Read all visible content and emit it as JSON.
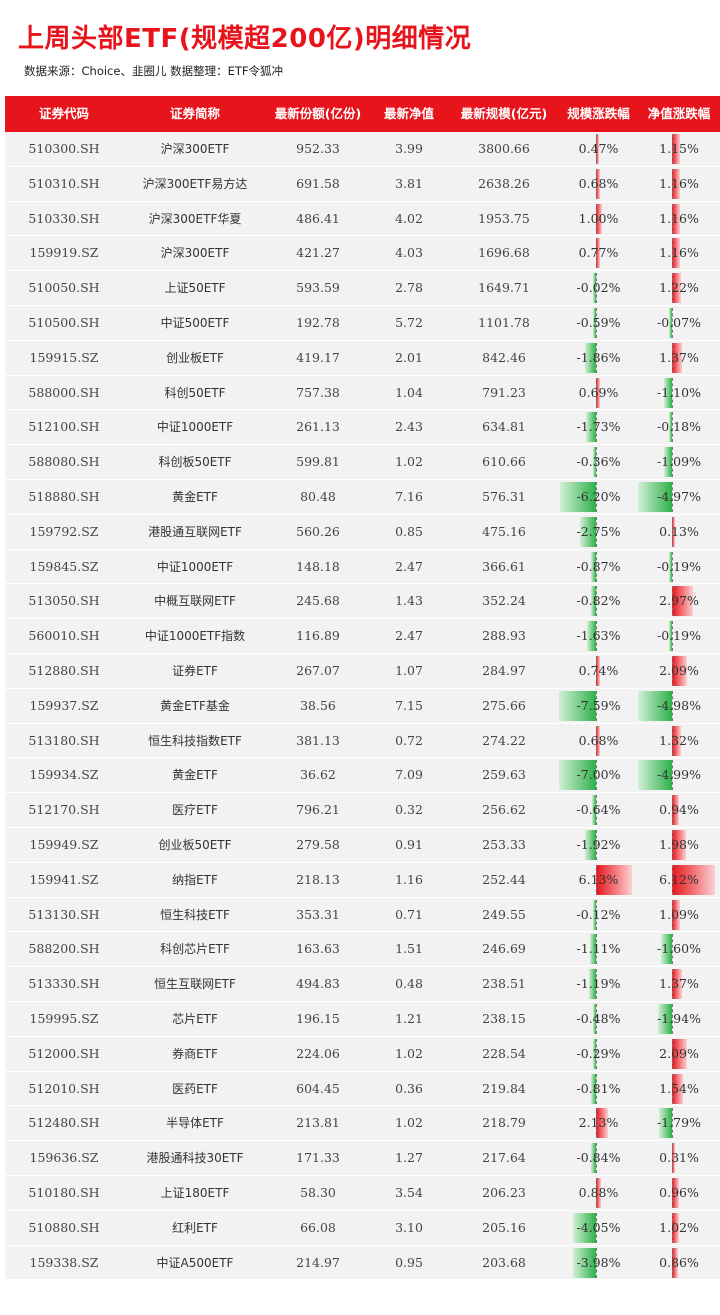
{
  "title": "上周头部ETF(规模超200亿)明细情况",
  "source": "数据来源：Choice、韭圈儿   数据整理：ETF令狐冲",
  "colors": {
    "accent": "#e8141c",
    "positive": "#e8141c",
    "negative": "#2fb04a",
    "row_bg": "#f2f2f2"
  },
  "columns": [
    "证券代码",
    "证券简称",
    "最新份额(亿份)",
    "最新净值",
    "最新规模(亿元)",
    "规模涨跌幅",
    "净值涨跌幅"
  ],
  "rows": [
    {
      "code": "510300.SH",
      "name": "沪深300ETF",
      "shares": "952.33",
      "nav": "3.99",
      "aum": "3800.66",
      "aum_chg": "0.47%",
      "nav_chg": "1.15%"
    },
    {
      "code": "510310.SH",
      "name": "沪深300ETF易方达",
      "shares": "691.58",
      "nav": "3.81",
      "aum": "2638.26",
      "aum_chg": "0.68%",
      "nav_chg": "1.16%"
    },
    {
      "code": "510330.SH",
      "name": "沪深300ETF华夏",
      "shares": "486.41",
      "nav": "4.02",
      "aum": "1953.75",
      "aum_chg": "1.00%",
      "nav_chg": "1.16%"
    },
    {
      "code": "159919.SZ",
      "name": "沪深300ETF",
      "shares": "421.27",
      "nav": "4.03",
      "aum": "1696.68",
      "aum_chg": "0.77%",
      "nav_chg": "1.16%"
    },
    {
      "code": "510050.SH",
      "name": "上证50ETF",
      "shares": "593.59",
      "nav": "2.78",
      "aum": "1649.71",
      "aum_chg": "-0.02%",
      "nav_chg": "1.22%"
    },
    {
      "code": "510500.SH",
      "name": "中证500ETF",
      "shares": "192.78",
      "nav": "5.72",
      "aum": "1101.78",
      "aum_chg": "-0.59%",
      "nav_chg": "-0.07%"
    },
    {
      "code": "159915.SZ",
      "name": "创业板ETF",
      "shares": "419.17",
      "nav": "2.01",
      "aum": "842.46",
      "aum_chg": "-1.86%",
      "nav_chg": "1.37%"
    },
    {
      "code": "588000.SH",
      "name": "科创50ETF",
      "shares": "757.38",
      "nav": "1.04",
      "aum": "791.23",
      "aum_chg": "0.69%",
      "nav_chg": "-1.10%"
    },
    {
      "code": "512100.SH",
      "name": "中证1000ETF",
      "shares": "261.13",
      "nav": "2.43",
      "aum": "634.81",
      "aum_chg": "-1.73%",
      "nav_chg": "-0.18%"
    },
    {
      "code": "588080.SH",
      "name": "科创板50ETF",
      "shares": "599.81",
      "nav": "1.02",
      "aum": "610.66",
      "aum_chg": "-0.36%",
      "nav_chg": "-1.09%"
    },
    {
      "code": "518880.SH",
      "name": "黄金ETF",
      "shares": "80.48",
      "nav": "7.16",
      "aum": "576.31",
      "aum_chg": "-6.20%",
      "nav_chg": "-4.97%"
    },
    {
      "code": "159792.SZ",
      "name": "港股通互联网ETF",
      "shares": "560.26",
      "nav": "0.85",
      "aum": "475.16",
      "aum_chg": "-2.75%",
      "nav_chg": "0.13%"
    },
    {
      "code": "159845.SZ",
      "name": "中证1000ETF",
      "shares": "148.18",
      "nav": "2.47",
      "aum": "366.61",
      "aum_chg": "-0.87%",
      "nav_chg": "-0.19%"
    },
    {
      "code": "513050.SH",
      "name": "中概互联网ETF",
      "shares": "245.68",
      "nav": "1.43",
      "aum": "352.24",
      "aum_chg": "-0.82%",
      "nav_chg": "2.97%"
    },
    {
      "code": "560010.SH",
      "name": "中证1000ETF指数",
      "shares": "116.89",
      "nav": "2.47",
      "aum": "288.93",
      "aum_chg": "-1.63%",
      "nav_chg": "-0.19%"
    },
    {
      "code": "512880.SH",
      "name": "证券ETF",
      "shares": "267.07",
      "nav": "1.07",
      "aum": "284.97",
      "aum_chg": "0.74%",
      "nav_chg": "2.09%"
    },
    {
      "code": "159937.SZ",
      "name": "黄金ETF基金",
      "shares": "38.56",
      "nav": "7.15",
      "aum": "275.66",
      "aum_chg": "-7.59%",
      "nav_chg": "-4.98%"
    },
    {
      "code": "513180.SH",
      "name": "恒生科技指数ETF",
      "shares": "381.13",
      "nav": "0.72",
      "aum": "274.22",
      "aum_chg": "0.68%",
      "nav_chg": "1.32%"
    },
    {
      "code": "159934.SZ",
      "name": "黄金ETF",
      "shares": "36.62",
      "nav": "7.09",
      "aum": "259.63",
      "aum_chg": "-7.00%",
      "nav_chg": "-4.99%"
    },
    {
      "code": "512170.SH",
      "name": "医疗ETF",
      "shares": "796.21",
      "nav": "0.32",
      "aum": "256.62",
      "aum_chg": "-0.64%",
      "nav_chg": "0.94%"
    },
    {
      "code": "159949.SZ",
      "name": "创业板50ETF",
      "shares": "279.58",
      "nav": "0.91",
      "aum": "253.33",
      "aum_chg": "-1.92%",
      "nav_chg": "1.98%"
    },
    {
      "code": "159941.SZ",
      "name": "纳指ETF",
      "shares": "218.13",
      "nav": "1.16",
      "aum": "252.44",
      "aum_chg": "6.13%",
      "nav_chg": "6.12%"
    },
    {
      "code": "513130.SH",
      "name": "恒生科技ETF",
      "shares": "353.31",
      "nav": "0.71",
      "aum": "249.55",
      "aum_chg": "-0.12%",
      "nav_chg": "1.09%"
    },
    {
      "code": "588200.SH",
      "name": "科创芯片ETF",
      "shares": "163.63",
      "nav": "1.51",
      "aum": "246.69",
      "aum_chg": "-1.11%",
      "nav_chg": "-1.60%"
    },
    {
      "code": "513330.SH",
      "name": "恒生互联网ETF",
      "shares": "494.83",
      "nav": "0.48",
      "aum": "238.51",
      "aum_chg": "-1.19%",
      "nav_chg": "1.37%"
    },
    {
      "code": "159995.SZ",
      "name": "芯片ETF",
      "shares": "196.15",
      "nav": "1.21",
      "aum": "238.15",
      "aum_chg": "-0.48%",
      "nav_chg": "-1.94%"
    },
    {
      "code": "512000.SH",
      "name": "券商ETF",
      "shares": "224.06",
      "nav": "1.02",
      "aum": "228.54",
      "aum_chg": "-0.29%",
      "nav_chg": "2.09%"
    },
    {
      "code": "512010.SH",
      "name": "医药ETF",
      "shares": "604.45",
      "nav": "0.36",
      "aum": "219.84",
      "aum_chg": "-0.81%",
      "nav_chg": "1.54%"
    },
    {
      "code": "512480.SH",
      "name": "半导体ETF",
      "shares": "213.81",
      "nav": "1.02",
      "aum": "218.79",
      "aum_chg": "2.13%",
      "nav_chg": "-1.79%"
    },
    {
      "code": "159636.SZ",
      "name": "港股通科技30ETF",
      "shares": "171.33",
      "nav": "1.27",
      "aum": "217.64",
      "aum_chg": "-0.84%",
      "nav_chg": "0.31%"
    },
    {
      "code": "510180.SH",
      "name": "上证180ETF",
      "shares": "58.30",
      "nav": "3.54",
      "aum": "206.23",
      "aum_chg": "0.88%",
      "nav_chg": "0.96%"
    },
    {
      "code": "510880.SH",
      "name": "红利ETF",
      "shares": "66.08",
      "nav": "3.10",
      "aum": "205.16",
      "aum_chg": "-4.05%",
      "nav_chg": "1.02%"
    },
    {
      "code": "159338.SZ",
      "name": "中证A500ETF",
      "shares": "214.97",
      "nav": "0.95",
      "aum": "203.68",
      "aum_chg": "-3.98%",
      "nav_chg": "0.86%"
    }
  ]
}
